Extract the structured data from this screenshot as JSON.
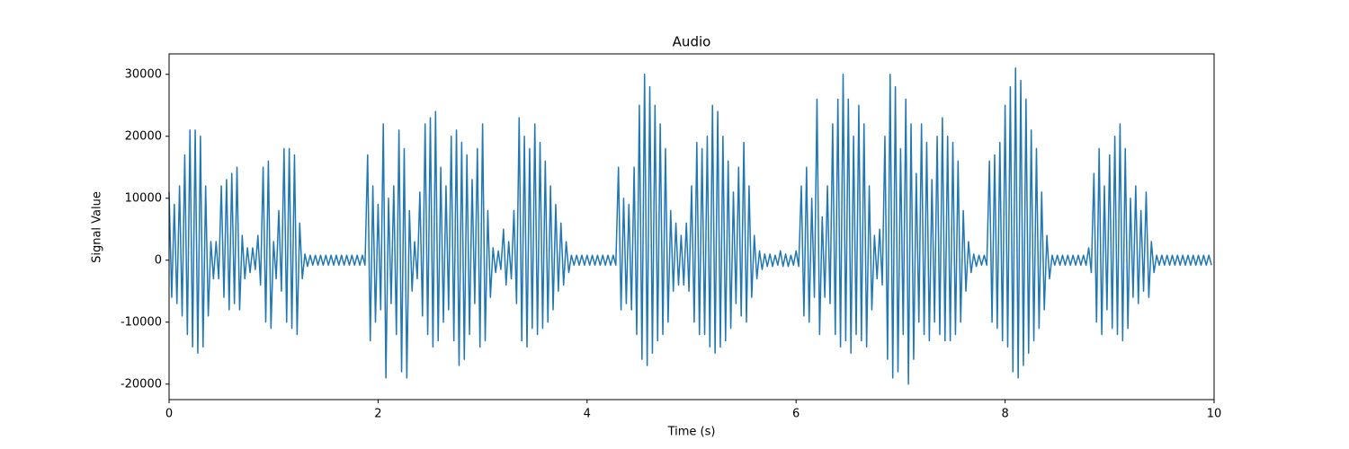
{
  "chart_data": {
    "type": "line",
    "title": "Audio",
    "x_label": "Time (s)",
    "y_label": "Signal Value",
    "color": "#1f77b4",
    "x": [
      0,
      0.025,
      0.05,
      0.075,
      0.1,
      0.125,
      0.15,
      0.175,
      0.2,
      0.225,
      0.25,
      0.275,
      0.3,
      0.325,
      0.35,
      0.375,
      0.4,
      0.425,
      0.45,
      0.475,
      0.5,
      0.525,
      0.55,
      0.575,
      0.6,
      0.625,
      0.65,
      0.675,
      0.7,
      0.725,
      0.75,
      0.775,
      0.8,
      0.825,
      0.85,
      0.875,
      0.9,
      0.925,
      0.95,
      0.975,
      1,
      1.025,
      1.05,
      1.075,
      1.1,
      1.125,
      1.15,
      1.175,
      1.2,
      1.225,
      1.25,
      1.275,
      1.3,
      1.325,
      1.35,
      1.375,
      1.4,
      1.425,
      1.45,
      1.475,
      1.5,
      1.525,
      1.55,
      1.575,
      1.6,
      1.625,
      1.65,
      1.675,
      1.7,
      1.725,
      1.75,
      1.775,
      1.8,
      1.825,
      1.85,
      1.875,
      1.9,
      1.925,
      1.95,
      1.975,
      2,
      2.025,
      2.05,
      2.075,
      2.1,
      2.125,
      2.15,
      2.175,
      2.2,
      2.225,
      2.25,
      2.275,
      2.3,
      2.325,
      2.35,
      2.375,
      2.4,
      2.425,
      2.45,
      2.475,
      2.5,
      2.525,
      2.55,
      2.575,
      2.6,
      2.625,
      2.65,
      2.675,
      2.7,
      2.725,
      2.75,
      2.775,
      2.8,
      2.825,
      2.85,
      2.875,
      2.9,
      2.925,
      2.95,
      2.975,
      3,
      3.025,
      3.05,
      3.075,
      3.1,
      3.125,
      3.15,
      3.175,
      3.2,
      3.225,
      3.25,
      3.275,
      3.3,
      3.325,
      3.35,
      3.375,
      3.4,
      3.425,
      3.45,
      3.475,
      3.5,
      3.525,
      3.55,
      3.575,
      3.6,
      3.625,
      3.65,
      3.675,
      3.7,
      3.725,
      3.75,
      3.775,
      3.8,
      3.825,
      3.85,
      3.875,
      3.9,
      3.925,
      3.95,
      3.975,
      4,
      4.025,
      4.05,
      4.075,
      4.1,
      4.125,
      4.15,
      4.175,
      4.2,
      4.225,
      4.25,
      4.275,
      4.3,
      4.325,
      4.35,
      4.375,
      4.4,
      4.425,
      4.45,
      4.475,
      4.5,
      4.525,
      4.55,
      4.575,
      4.6,
      4.625,
      4.65,
      4.675,
      4.7,
      4.725,
      4.75,
      4.775,
      4.8,
      4.825,
      4.85,
      4.875,
      4.9,
      4.925,
      4.95,
      4.975,
      5,
      5.025,
      5.05,
      5.075,
      5.1,
      5.125,
      5.15,
      5.175,
      5.2,
      5.225,
      5.25,
      5.275,
      5.3,
      5.325,
      5.35,
      5.375,
      5.4,
      5.425,
      5.45,
      5.475,
      5.5,
      5.525,
      5.55,
      5.575,
      5.6,
      5.625,
      5.65,
      5.675,
      5.7,
      5.725,
      5.75,
      5.775,
      5.8,
      5.825,
      5.85,
      5.875,
      5.9,
      5.925,
      5.95,
      5.975,
      6,
      6.025,
      6.05,
      6.075,
      6.1,
      6.125,
      6.15,
      6.175,
      6.2,
      6.225,
      6.25,
      6.275,
      6.3,
      6.325,
      6.35,
      6.375,
      6.4,
      6.425,
      6.45,
      6.475,
      6.5,
      6.525,
      6.55,
      6.575,
      6.6,
      6.625,
      6.65,
      6.675,
      6.7,
      6.725,
      6.75,
      6.775,
      6.8,
      6.825,
      6.85,
      6.875,
      6.9,
      6.925,
      6.95,
      6.975,
      7,
      7.025,
      7.05,
      7.075,
      7.1,
      7.125,
      7.15,
      7.175,
      7.2,
      7.225,
      7.25,
      7.275,
      7.3,
      7.325,
      7.35,
      7.375,
      7.4,
      7.425,
      7.45,
      7.475,
      7.5,
      7.525,
      7.55,
      7.575,
      7.6,
      7.625,
      7.65,
      7.675,
      7.7,
      7.725,
      7.75,
      7.775,
      7.8,
      7.825,
      7.85,
      7.875,
      7.9,
      7.925,
      7.95,
      7.975,
      8,
      8.025,
      8.05,
      8.075,
      8.1,
      8.125,
      8.15,
      8.175,
      8.2,
      8.225,
      8.25,
      8.275,
      8.3,
      8.325,
      8.35,
      8.375,
      8.4,
      8.425,
      8.45,
      8.475,
      8.5,
      8.525,
      8.55,
      8.575,
      8.6,
      8.625,
      8.65,
      8.675,
      8.7,
      8.725,
      8.75,
      8.775,
      8.8,
      8.825,
      8.85,
      8.875,
      8.9,
      8.925,
      8.95,
      8.975,
      9,
      9.025,
      9.05,
      9.075,
      9.1,
      9.125,
      9.15,
      9.175,
      9.2,
      9.225,
      9.25,
      9.275,
      9.3,
      9.325,
      9.35,
      9.375,
      9.4,
      9.425,
      9.45,
      9.475,
      9.5,
      9.525,
      9.55,
      9.575,
      9.6,
      9.625,
      9.65,
      9.675,
      9.7,
      9.725,
      9.75,
      9.775,
      9.8,
      9.825,
      9.85,
      9.875,
      9.9,
      9.925,
      9.95,
      9.975
    ],
    "values": [
      11000,
      -6000,
      9000,
      -7000,
      12000,
      -9000,
      17000,
      -12000,
      21000,
      -14000,
      21000,
      -15000,
      20000,
      -14000,
      12000,
      -9000,
      3000,
      -3000,
      3000,
      -3000,
      12000,
      -6000,
      13000,
      -8000,
      14000,
      -7000,
      15000,
      -8000,
      4000,
      -3000,
      2000,
      -2000,
      2000,
      -1500,
      4000,
      -4000,
      15000,
      -10000,
      16000,
      -11000,
      3000,
      -3000,
      8000,
      -5000,
      18000,
      -10000,
      18000,
      -11000,
      17000,
      -12000,
      6000,
      -3000,
      1000,
      -1000,
      800,
      -800,
      800,
      -800,
      800,
      -800,
      800,
      -800,
      800,
      -800,
      800,
      -800,
      800,
      -800,
      800,
      -800,
      800,
      -800,
      800,
      -800,
      800,
      -800,
      17000,
      -13000,
      12000,
      -10000,
      9000,
      -8000,
      22000,
      -19000,
      10000,
      -7000,
      12000,
      -12000,
      21000,
      -18000,
      18000,
      -19000,
      8000,
      -5000,
      3000,
      -3000,
      11000,
      -9000,
      22000,
      -12000,
      23000,
      -14000,
      24000,
      -13000,
      15000,
      -10000,
      12000,
      -8000,
      20000,
      -13000,
      21000,
      -17000,
      19000,
      -16000,
      17000,
      -12000,
      13000,
      -7000,
      18000,
      -14000,
      22000,
      -13000,
      8000,
      -6000,
      2000,
      -2000,
      1500,
      -1500,
      5000,
      -4000,
      3000,
      -3000,
      8000,
      -7000,
      23000,
      -13000,
      20000,
      -14000,
      18000,
      -11000,
      22000,
      -12000,
      19000,
      -11000,
      16000,
      -10000,
      12000,
      -8000,
      9000,
      -5000,
      6000,
      -4000,
      3000,
      -2000,
      800,
      -800,
      800,
      -800,
      800,
      -800,
      800,
      -800,
      800,
      -800,
      800,
      -800,
      800,
      -800,
      800,
      -800,
      800,
      -800,
      15000,
      -8000,
      10000,
      -7000,
      9000,
      -8000,
      15000,
      -12000,
      25000,
      -16000,
      30000,
      -17000,
      28000,
      -15000,
      25000,
      -13000,
      22000,
      -12000,
      18000,
      -10000,
      8000,
      -5000,
      6000,
      -4000,
      4000,
      -4000,
      6000,
      -5000,
      12000,
      -10000,
      19000,
      -12000,
      18000,
      -12000,
      20000,
      -14000,
      25000,
      -15000,
      24000,
      -14000,
      20000,
      -13000,
      16000,
      -11000,
      11000,
      -7000,
      15000,
      -9000,
      19000,
      -10000,
      12000,
      -6000,
      4000,
      -3000,
      1500,
      -1500,
      1000,
      -1000,
      1000,
      -1000,
      800,
      -800,
      1500,
      -1000,
      1000,
      -1000,
      800,
      -800,
      1500,
      -1000,
      12000,
      -9000,
      15000,
      -10000,
      10000,
      -6000,
      26000,
      -12000,
      7000,
      -6000,
      12000,
      -7000,
      22000,
      -12000,
      26000,
      -14000,
      30000,
      -13000,
      26000,
      -15000,
      20000,
      -12000,
      25000,
      -13000,
      22000,
      -14000,
      12000,
      -8000,
      4000,
      -3000,
      5000,
      -4000,
      20000,
      -16000,
      30000,
      -19000,
      28000,
      -18000,
      18000,
      -12000,
      26000,
      -20000,
      22000,
      -16000,
      14000,
      -10000,
      22000,
      -12000,
      19000,
      -13000,
      13000,
      -10000,
      20000,
      -12000,
      23000,
      -13000,
      20000,
      -13000,
      19000,
      -12000,
      16000,
      -10000,
      8000,
      -5000,
      3000,
      -2000,
      1000,
      -1000,
      800,
      -800,
      800,
      -800,
      16000,
      -10000,
      17000,
      -11000,
      19000,
      -13000,
      25000,
      -14000,
      28000,
      -18000,
      31000,
      -19000,
      29000,
      -17000,
      26000,
      -15000,
      21000,
      -13000,
      18000,
      -11000,
      11000,
      -8000,
      4000,
      -3000,
      800,
      -800,
      800,
      -800,
      800,
      -800,
      800,
      -800,
      800,
      -800,
      800,
      -800,
      800,
      -800,
      2000,
      -2000,
      14000,
      -10000,
      18000,
      -12000,
      12000,
      -8000,
      17000,
      -11000,
      20000,
      -12000,
      22000,
      -13000,
      18000,
      -11000,
      10000,
      -6000,
      12000,
      -7000,
      8000,
      -5000,
      11000,
      -6000,
      3000,
      -2000,
      800,
      -800,
      800,
      -800,
      800,
      -800,
      800,
      -800,
      800,
      -800,
      800,
      -800,
      800,
      -800,
      800,
      -800,
      800,
      -800,
      800,
      -800,
      800,
      -800
    ],
    "xlim": [
      0,
      10
    ],
    "xticks": [
      0,
      2,
      4,
      6,
      8,
      10
    ],
    "ylim": [
      -22500,
      33300
    ],
    "yticks": [
      -20000,
      -10000,
      0,
      10000,
      20000,
      30000
    ]
  }
}
